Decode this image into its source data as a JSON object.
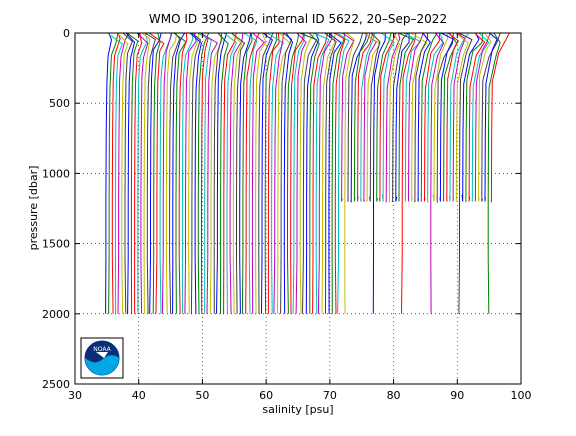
{
  "chart_data": {
    "type": "line",
    "title": "WMO ID 3901206, internal ID 5622, 20–Sep–2022",
    "xlabel": "salinity [psu]",
    "ylabel": "pressure [dbar]",
    "xlim": [
      30,
      100
    ],
    "ylim": [
      0,
      2500
    ],
    "y_reversed": true,
    "grid": true,
    "x_ticks": [
      30,
      40,
      50,
      60,
      70,
      80,
      90,
      100
    ],
    "y_ticks": [
      0,
      500,
      1000,
      1500,
      2000,
      2500
    ],
    "x_tick_labels": [
      "30",
      "40",
      "50",
      "60",
      "70",
      "80",
      "90",
      "100"
    ],
    "y_tick_labels": [
      "0",
      "500",
      "1000",
      "1500",
      "2000",
      "2500"
    ],
    "series_note": "Waterfall of individual salinity profiles, each consecutive profile offset by about 0.5 psu; most profiles reach 2000 dbar, later ones stop near 1150 dbar.",
    "profile_count": 122,
    "first_profile_salinity": 34.9,
    "offset_per_profile_psu": 0.5,
    "full_depth_dbar": 2000,
    "shallow_depth_dbar": 1150,
    "series_colors": [
      "#0000ff",
      "#008000",
      "#ff0000",
      "#00bfbf",
      "#bf00bf",
      "#bfbf00",
      "#404040"
    ]
  },
  "logo": {
    "text": "NOAA",
    "colors": [
      "#0a2f7a",
      "#00a6e6",
      "#ffffff"
    ]
  }
}
